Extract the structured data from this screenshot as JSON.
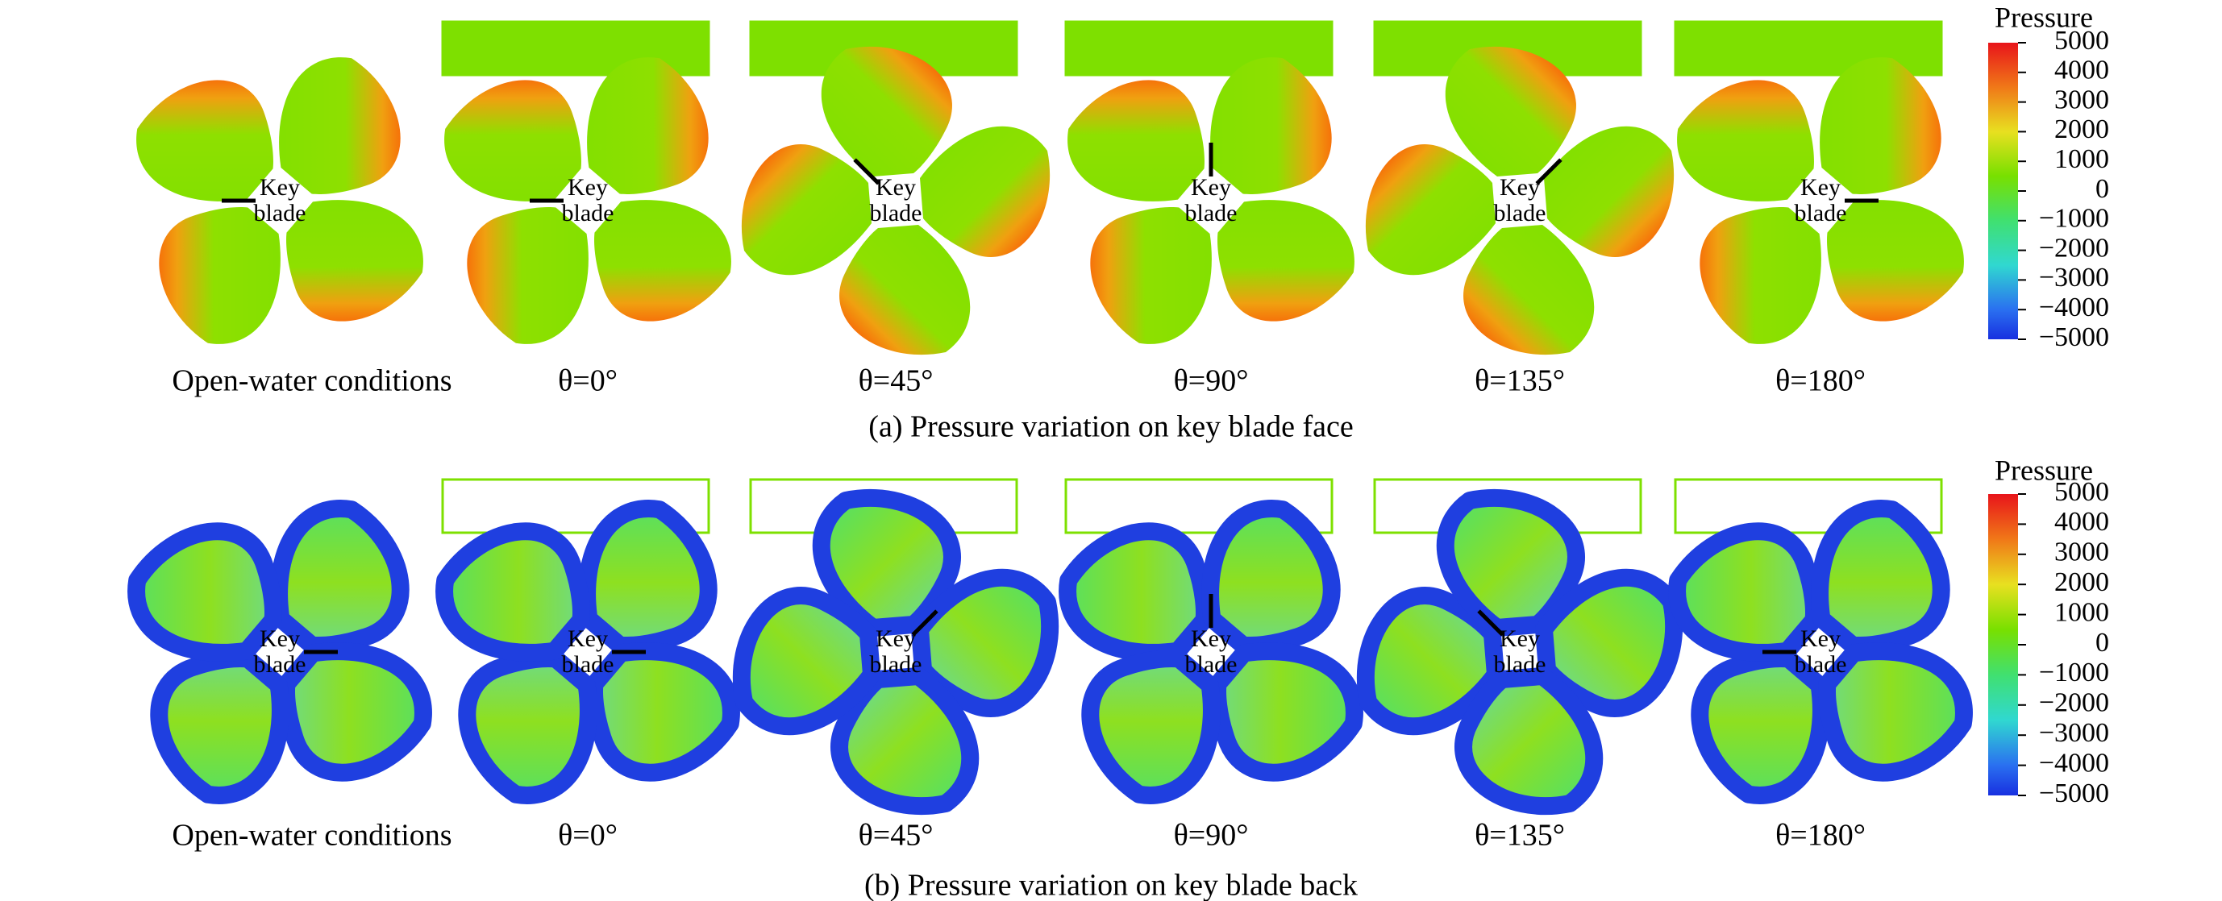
{
  "panels": [
    {
      "caption": "(a) Pressure variation on key blade face",
      "colorbar": {
        "title": "Pressure",
        "ticks": [
          "5000",
          "4000",
          "3000",
          "2000",
          "1000",
          "0",
          "−1000",
          "−2000",
          "−3000",
          "−4000",
          "−5000"
        ]
      },
      "views": [
        {
          "label": "Open-water conditions",
          "key_label": [
            "Key",
            "blade"
          ]
        },
        {
          "label": "θ=0°",
          "key_label": [
            "Key",
            "blade"
          ]
        },
        {
          "label": "θ=45°",
          "key_label": [
            "Key",
            "blade"
          ]
        },
        {
          "label": "θ=90°",
          "key_label": [
            "Key",
            "blade"
          ]
        },
        {
          "label": "θ=135°",
          "key_label": [
            "Key",
            "blade"
          ]
        },
        {
          "label": "θ=180°",
          "key_label": [
            "Key",
            "blade"
          ]
        }
      ]
    },
    {
      "caption": "(b) Pressure variation on key blade back",
      "colorbar": {
        "title": "Pressure",
        "ticks": [
          "5000",
          "4000",
          "3000",
          "2000",
          "1000",
          "0",
          "−1000",
          "−2000",
          "−3000",
          "−4000",
          "−5000"
        ]
      },
      "views": [
        {
          "label": "Open-water conditions",
          "key_label": [
            "Key",
            "blade"
          ]
        },
        {
          "label": "θ=0°",
          "key_label": [
            "Key",
            "blade"
          ]
        },
        {
          "label": "θ=45°",
          "key_label": [
            "Key",
            "blade"
          ]
        },
        {
          "label": "θ=90°",
          "key_label": [
            "Key",
            "blade"
          ]
        },
        {
          "label": "θ=135°",
          "key_label": [
            "Key",
            "blade"
          ]
        },
        {
          "label": "θ=180°",
          "key_label": [
            "Key",
            "blade"
          ]
        }
      ]
    }
  ]
}
